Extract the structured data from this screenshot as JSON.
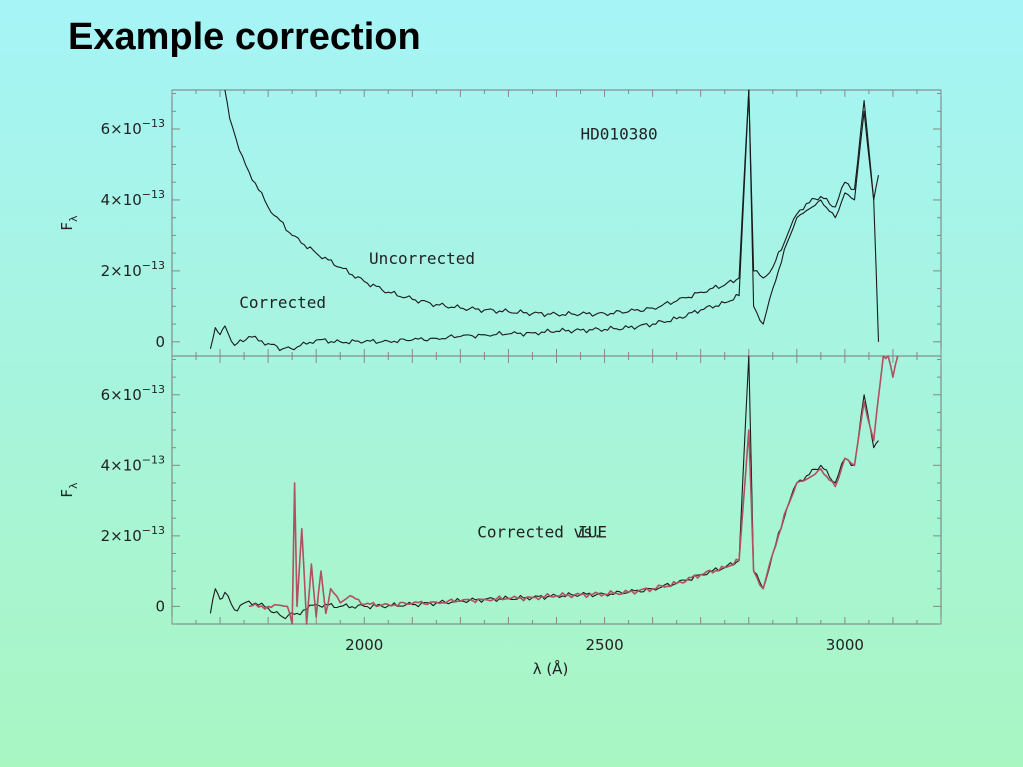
{
  "slide": {
    "title": "Example correction"
  },
  "colors": {
    "background_top": "#a6f4f6",
    "background_bottom": "#a8f6c2",
    "spectrum": "#1a1a1a",
    "iue": "#b05060",
    "axes": "#777777"
  },
  "chart_data": [
    {
      "type": "line",
      "panel": "top",
      "ylabel": "Fλ",
      "xlim": [
        1600,
        3200
      ],
      "ylim": [
        -0.4,
        7.1
      ],
      "y_scale_note": "x10^-13",
      "yticks": [
        {
          "value": 0,
          "label": "0"
        },
        {
          "value": 2,
          "label": "2×10",
          "exp": "−13"
        },
        {
          "value": 4,
          "label": "4×10",
          "exp": "−13"
        },
        {
          "value": 6,
          "label": "6×10",
          "exp": "−13"
        }
      ],
      "grid": false,
      "annotations": [
        {
          "text": "HD010380",
          "x": 2450,
          "y": 5.7
        },
        {
          "text": "Uncorrected",
          "x": 2010,
          "y": 2.2
        },
        {
          "text": "Corrected",
          "x": 1740,
          "y": 0.95
        }
      ],
      "series": [
        {
          "name": "Uncorrected",
          "x": [
            1710,
            1720,
            1740,
            1760,
            1800,
            1850,
            1900,
            1950,
            2000,
            2050,
            2100,
            2150,
            2200,
            2250,
            2300,
            2350,
            2400,
            2450,
            2500,
            2550,
            2600,
            2650,
            2700,
            2750,
            2780,
            2800,
            2810,
            2830,
            2850,
            2880,
            2900,
            2920,
            2950,
            2980,
            3000,
            3020,
            3040,
            3060,
            3070
          ],
          "y": [
            7.1,
            6.3,
            5.4,
            4.8,
            3.8,
            3.0,
            2.5,
            2.1,
            1.7,
            1.4,
            1.2,
            1.05,
            0.95,
            0.9,
            0.85,
            0.8,
            0.78,
            0.78,
            0.8,
            0.85,
            0.95,
            1.15,
            1.4,
            1.6,
            1.8,
            7.1,
            2.0,
            1.8,
            2.1,
            3.0,
            3.6,
            3.9,
            4.1,
            3.8,
            4.5,
            4.3,
            6.8,
            4.0,
            4.7
          ]
        },
        {
          "name": "Corrected",
          "x": [
            1680,
            1690,
            1700,
            1710,
            1730,
            1760,
            1800,
            1830,
            1860,
            1900,
            1950,
            2000,
            2050,
            2100,
            2150,
            2200,
            2250,
            2300,
            2350,
            2400,
            2450,
            2500,
            2550,
            2600,
            2650,
            2700,
            2750,
            2780,
            2800,
            2810,
            2830,
            2850,
            2880,
            2900,
            2920,
            2950,
            2980,
            3000,
            3020,
            3040,
            3060,
            3070
          ],
          "y": [
            -0.2,
            0.4,
            0.2,
            0.45,
            -0.1,
            0.15,
            -0.05,
            -0.2,
            -0.15,
            0.05,
            0.0,
            0.0,
            0.02,
            0.05,
            0.1,
            0.15,
            0.2,
            0.22,
            0.25,
            0.3,
            0.33,
            0.35,
            0.4,
            0.5,
            0.65,
            0.9,
            1.1,
            1.3,
            7.1,
            1.0,
            0.5,
            1.5,
            2.8,
            3.5,
            3.7,
            4.0,
            3.5,
            4.2,
            4.0,
            6.5,
            4.0,
            0.0
          ]
        }
      ]
    },
    {
      "type": "line",
      "panel": "bottom",
      "xlabel": "λ (Å)",
      "ylabel": "Fλ",
      "xlim": [
        1600,
        3200
      ],
      "ylim": [
        -0.5,
        7.1
      ],
      "xticks": [
        2000,
        2500,
        3000
      ],
      "yticks": [
        {
          "value": 0,
          "label": "0"
        },
        {
          "value": 2,
          "label": "2×10",
          "exp": "−13"
        },
        {
          "value": 4,
          "label": "4×10",
          "exp": "−13"
        },
        {
          "value": 6,
          "label": "6×10",
          "exp": "−13"
        }
      ],
      "grid": false,
      "annotations": [
        {
          "text": "Corrected vs.",
          "x": 2235,
          "y": 1.95
        },
        {
          "text": "IUE",
          "x": 2445,
          "y": 1.95,
          "color": "#b05060"
        }
      ],
      "series": [
        {
          "name": "Corrected",
          "x": [
            1680,
            1690,
            1700,
            1710,
            1730,
            1760,
            1800,
            1830,
            1860,
            1900,
            1950,
            2000,
            2050,
            2100,
            2150,
            2200,
            2250,
            2300,
            2350,
            2400,
            2450,
            2500,
            2550,
            2600,
            2650,
            2700,
            2750,
            2780,
            2800,
            2810,
            2830,
            2850,
            2880,
            2900,
            2920,
            2950,
            2980,
            3000,
            3020,
            3040,
            3060,
            3070
          ],
          "y": [
            -0.2,
            0.5,
            0.2,
            0.4,
            -0.1,
            0.15,
            -0.05,
            -0.3,
            -0.2,
            0.05,
            0.0,
            0.0,
            0.02,
            0.05,
            0.1,
            0.15,
            0.2,
            0.22,
            0.25,
            0.3,
            0.33,
            0.35,
            0.4,
            0.5,
            0.65,
            0.9,
            1.1,
            1.3,
            7.1,
            1.0,
            0.5,
            1.5,
            2.8,
            3.5,
            3.7,
            4.0,
            3.5,
            4.2,
            4.0,
            6.0,
            4.5,
            4.7
          ]
        },
        {
          "name": "IUE",
          "x": [
            1760,
            1800,
            1840,
            1850,
            1855,
            1860,
            1870,
            1880,
            1890,
            1900,
            1910,
            1920,
            1930,
            1950,
            1970,
            2000,
            2050,
            2100,
            2150,
            2200,
            2250,
            2300,
            2350,
            2400,
            2450,
            2500,
            2550,
            2600,
            2650,
            2700,
            2750,
            2780,
            2800,
            2810,
            2830,
            2850,
            2880,
            2900,
            2920,
            2950,
            2980,
            3000,
            3020,
            3040,
            3060,
            3080,
            3090,
            3100,
            3110
          ],
          "y": [
            0.0,
            0.0,
            0.0,
            -0.5,
            3.5,
            0.0,
            2.2,
            -0.5,
            1.2,
            -0.3,
            1.0,
            -0.2,
            0.5,
            0.1,
            0.3,
            0.05,
            0.05,
            0.08,
            0.12,
            0.15,
            0.2,
            0.22,
            0.25,
            0.3,
            0.33,
            0.35,
            0.4,
            0.5,
            0.65,
            0.9,
            1.1,
            1.3,
            5.0,
            1.0,
            0.5,
            1.5,
            2.8,
            3.5,
            3.6,
            3.9,
            3.4,
            4.2,
            4.0,
            5.8,
            4.7,
            7.1,
            7.1,
            6.5,
            7.1
          ]
        }
      ]
    }
  ]
}
